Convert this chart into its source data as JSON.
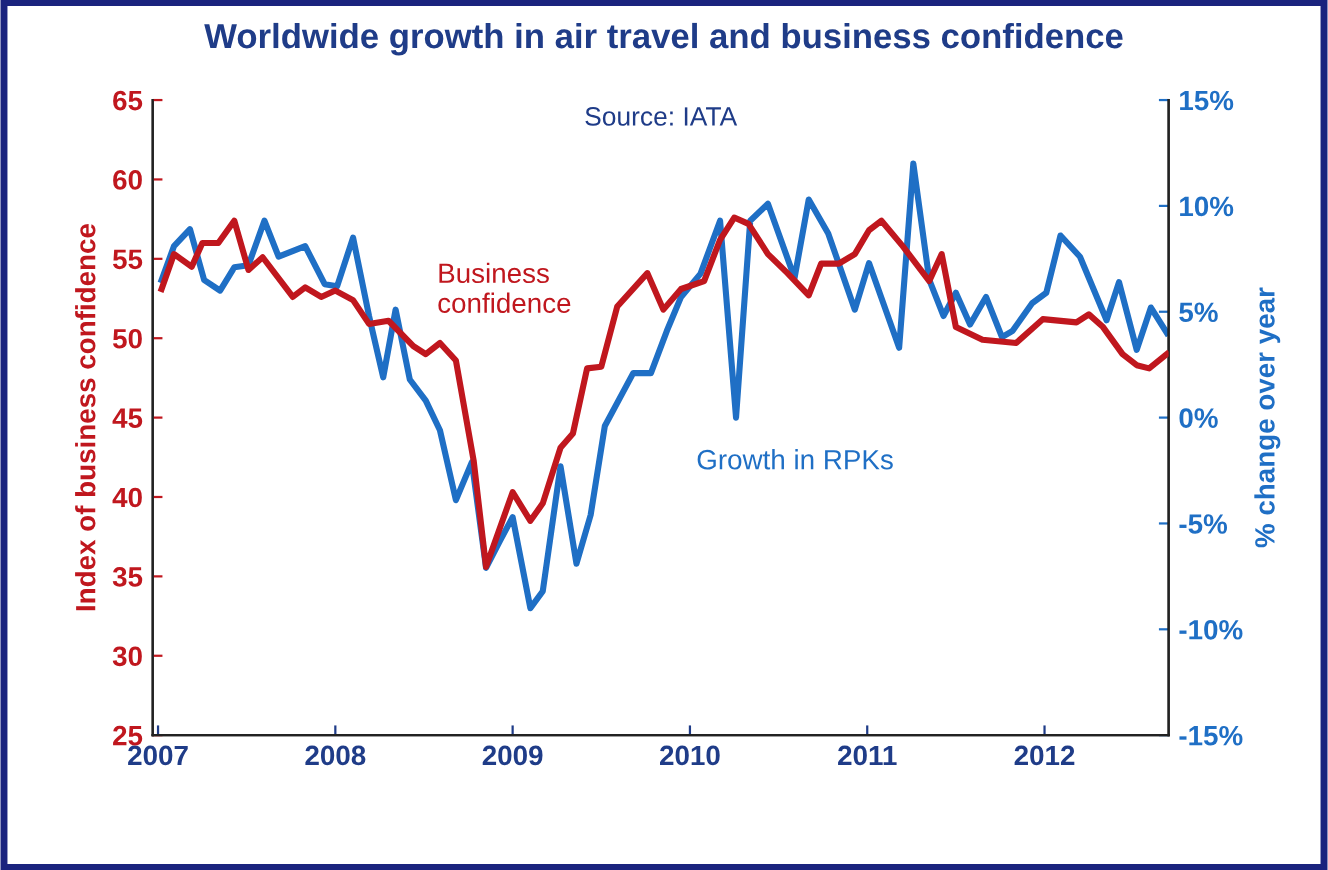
{
  "chart_data": {
    "type": "line",
    "title": "Worldwide growth in air travel and business confidence",
    "subtitle": "Source: IATA",
    "ylabel": "Index of business confidence",
    "y2label": "% change over year",
    "xlim": [
      2006.97,
      2012.7
    ],
    "xticks": [
      2007,
      2008,
      2009,
      2010,
      2011,
      2012
    ],
    "ylim": [
      25,
      65
    ],
    "yticks": [
      25,
      30,
      35,
      40,
      45,
      50,
      55,
      60,
      65
    ],
    "y2lim": [
      -15,
      15
    ],
    "y2ticks": [
      {
        "value": -15,
        "label": "-15%"
      },
      {
        "value": -10,
        "label": "-10%"
      },
      {
        "value": -5,
        "label": "-5%"
      },
      {
        "value": 0,
        "label": "0%"
      },
      {
        "value": 5,
        "label": "5%"
      },
      {
        "value": 10,
        "label": "10%"
      },
      {
        "value": 15,
        "label": "15%"
      }
    ],
    "grid": false,
    "legend": false,
    "series": [
      {
        "name": "Business confidence",
        "color": "#c0171e",
        "axis": "y",
        "x": [
          2007.02,
          2007.09,
          2007.19,
          2007.25,
          2007.34,
          2007.43,
          2007.51,
          2007.59,
          2007.76,
          2007.83,
          2007.92,
          2008.0,
          2008.1,
          2008.19,
          2008.3,
          2008.44,
          2008.51,
          2008.59,
          2008.68,
          2008.78,
          2008.85,
          2009.0,
          2009.1,
          2009.17,
          2009.27,
          2009.34,
          2009.42,
          2009.5,
          2009.59,
          2009.76,
          2009.85,
          2009.95,
          2010.08,
          2010.17,
          2010.25,
          2010.33,
          2010.44,
          2010.55,
          2010.67,
          2010.74,
          2010.84,
          2010.93,
          2011.01,
          2011.08,
          2011.2,
          2011.35,
          2011.42,
          2011.5,
          2011.65,
          2011.84,
          2011.99,
          2012.18,
          2012.25,
          2012.33,
          2012.44,
          2012.52,
          2012.59,
          2012.69
        ],
        "values": [
          53.1,
          55.3,
          54.5,
          56.0,
          56.0,
          57.4,
          54.3,
          55.1,
          52.6,
          53.2,
          52.6,
          53.0,
          52.4,
          50.9,
          51.1,
          49.5,
          49.0,
          49.7,
          48.6,
          42.3,
          35.6,
          40.3,
          38.5,
          39.6,
          43.1,
          44.0,
          48.1,
          48.2,
          52.0,
          54.1,
          51.8,
          53.1,
          53.6,
          56.2,
          57.6,
          57.2,
          55.3,
          54.1,
          52.7,
          54.7,
          54.7,
          55.3,
          56.8,
          57.4,
          55.8,
          53.6,
          55.3,
          50.7,
          49.9,
          49.7,
          51.2,
          51.0,
          51.5,
          50.7,
          49.0,
          48.3,
          48.1,
          49.0
        ]
      },
      {
        "name": "Growth in RPKs",
        "color": "#1f6fc5",
        "axis": "y2",
        "x": [
          2007.02,
          2007.09,
          2007.18,
          2007.26,
          2007.35,
          2007.43,
          2007.51,
          2007.6,
          2007.68,
          2007.83,
          2007.94,
          2008.01,
          2008.1,
          2008.19,
          2008.27,
          2008.34,
          2008.42,
          2008.51,
          2008.59,
          2008.68,
          2008.77,
          2008.85,
          2008.93,
          2009.0,
          2009.1,
          2009.17,
          2009.27,
          2009.36,
          2009.44,
          2009.52,
          2009.68,
          2009.78,
          2009.87,
          2009.95,
          2010.06,
          2010.17,
          2010.26,
          2010.34,
          2010.44,
          2010.59,
          2010.67,
          2010.78,
          2010.93,
          2011.01,
          2011.18,
          2011.26,
          2011.35,
          2011.43,
          2011.5,
          2011.58,
          2011.67,
          2011.76,
          2011.82,
          2011.93,
          2012.01,
          2012.09,
          2012.2,
          2012.35,
          2012.42,
          2012.52,
          2012.6,
          2012.69
        ],
        "values": [
          6.5,
          8.1,
          8.9,
          6.5,
          6.0,
          7.1,
          7.2,
          9.3,
          7.6,
          8.1,
          6.3,
          6.2,
          8.5,
          4.8,
          1.9,
          5.1,
          1.8,
          0.8,
          -0.6,
          -3.9,
          -2.1,
          -7.1,
          -5.8,
          -4.7,
          -9.0,
          -8.2,
          -2.3,
          -6.9,
          -4.6,
          -0.4,
          2.1,
          2.1,
          4.1,
          5.7,
          6.8,
          9.3,
          0.0,
          9.3,
          10.1,
          6.6,
          10.3,
          8.7,
          5.1,
          7.3,
          3.3,
          12.0,
          6.5,
          4.8,
          5.9,
          4.4,
          5.7,
          3.8,
          4.1,
          5.4,
          5.9,
          8.6,
          7.6,
          4.6,
          6.4,
          3.2,
          5.2,
          4.0
        ]
      }
    ]
  }
}
